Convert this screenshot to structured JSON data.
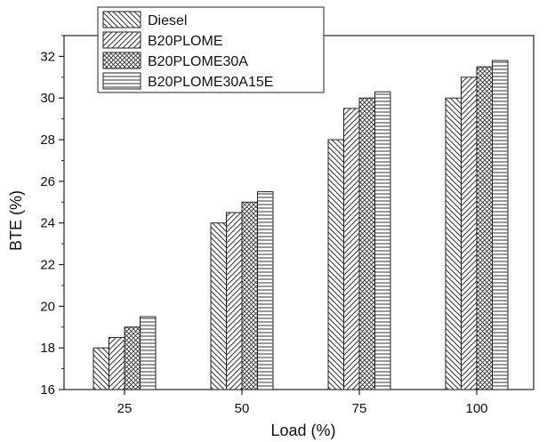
{
  "chart_data": {
    "type": "bar",
    "title": "",
    "xlabel": "Load (%)",
    "ylabel": "BTE (%)",
    "categories": [
      "25",
      "50",
      "75",
      "100"
    ],
    "ylim": [
      16,
      33
    ],
    "yticks": [
      16,
      18,
      20,
      22,
      24,
      26,
      28,
      30,
      32
    ],
    "yticks_labels": [
      "16",
      "18",
      "20",
      "22",
      "24",
      "26",
      "28",
      "30",
      "32"
    ],
    "grid": false,
    "legend_position": "top-left",
    "series": [
      {
        "name": "Diesel",
        "pattern": "diag-down",
        "values": [
          18.0,
          24.0,
          28.0,
          30.0
        ]
      },
      {
        "name": "B20PLOME",
        "pattern": "diag-up",
        "values": [
          18.5,
          24.5,
          29.5,
          31.0
        ]
      },
      {
        "name": "B20PLOME30A",
        "pattern": "crosshatch",
        "values": [
          19.0,
          25.0,
          30.0,
          31.5
        ]
      },
      {
        "name": "B20PLOME30A15E",
        "pattern": "horizontal",
        "values": [
          19.5,
          25.5,
          30.3,
          31.8
        ]
      }
    ],
    "colors": {
      "stroke": "#222222",
      "background": "#ffffff"
    }
  }
}
